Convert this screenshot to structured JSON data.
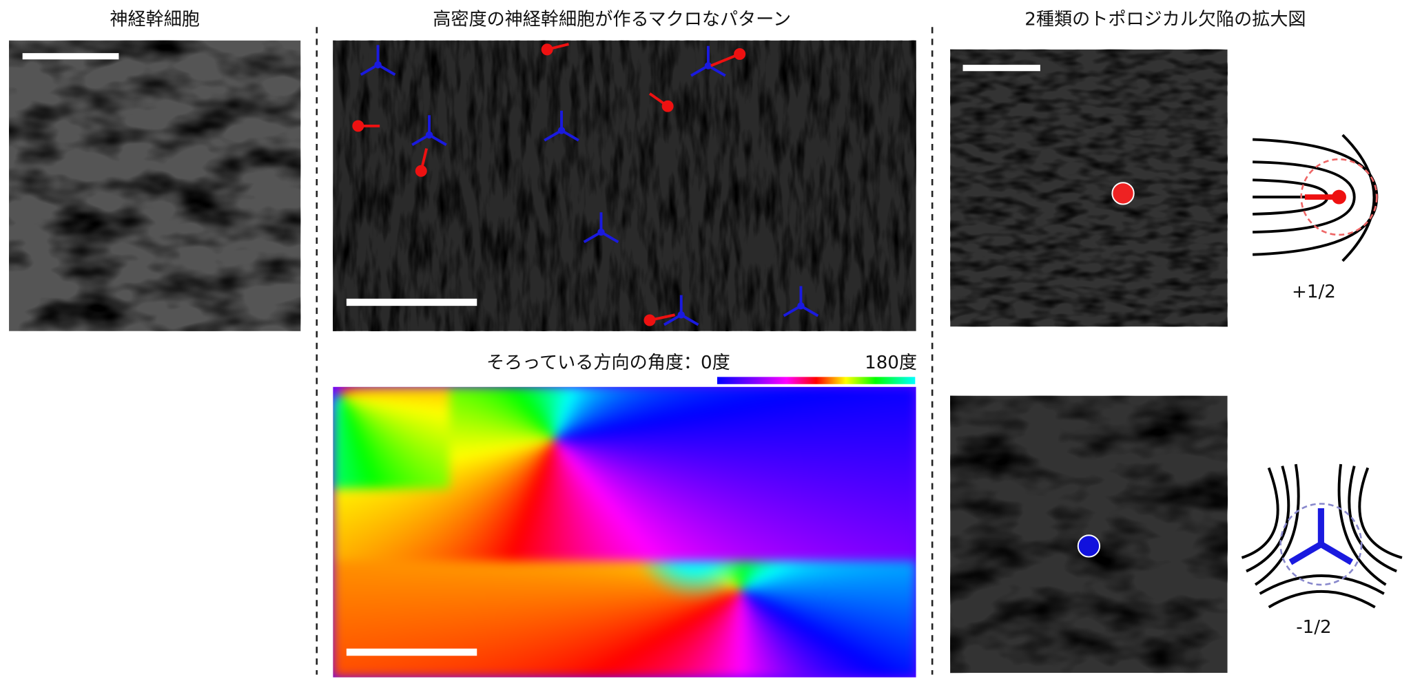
{
  "panels": {
    "left": {
      "title": "神経幹細胞"
    },
    "center_top": {
      "title": "高密度の神経幹細胞が作るマクロなパターン"
    },
    "center_bottom": {
      "title": "そろっている方向の角度：",
      "colorbar_min": "0度",
      "colorbar_max": "180度"
    },
    "right": {
      "title": "2種類のトポロジカル欠陥の拡大図",
      "plus_label": "+1/2",
      "minus_label": "-1/2"
    }
  }
}
